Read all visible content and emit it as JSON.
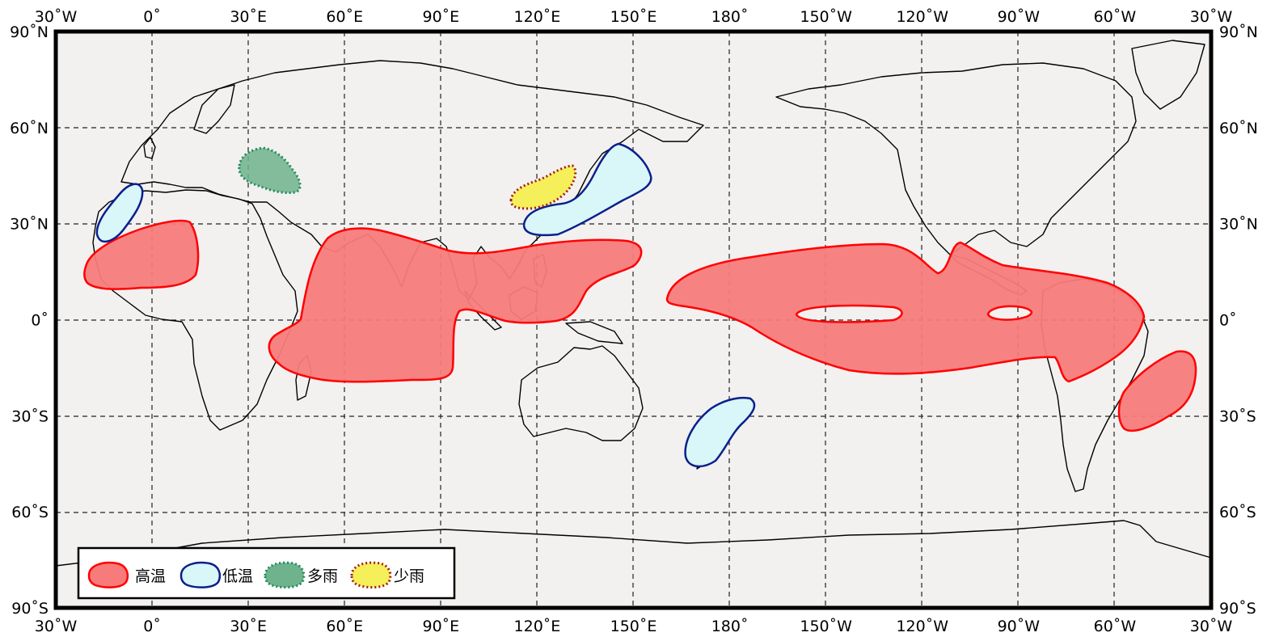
{
  "map": {
    "projection": "equirectangular",
    "lon_range": [
      "30°W",
      "30°W"
    ],
    "lat_range": [
      "90°S",
      "90°N"
    ],
    "gridlines": "dashed",
    "top_lon_labels": [
      "30˚W",
      "0˚",
      "30˚E",
      "60˚E",
      "90˚E",
      "120˚E",
      "150˚E",
      "180˚",
      "150˚W",
      "120˚W",
      "90˚W",
      "60˚W",
      "30˚W"
    ],
    "bottom_lon_labels": [
      "30˚W",
      "0˚",
      "30˚E",
      "60˚E",
      "90˚E",
      "120˚E",
      "150˚E",
      "180˚",
      "150˚W",
      "120˚W",
      "90˚W",
      "60˚W",
      "30˚W"
    ],
    "left_lat_labels": [
      "90˚N",
      "60˚N",
      "30˚N",
      "0˚",
      "30˚S",
      "60˚S",
      "90˚S"
    ],
    "right_lat_labels": [
      "90˚N",
      "60˚N",
      "30˚N",
      "0˚",
      "30˚S",
      "60˚S",
      "90˚S"
    ],
    "colors": {
      "ocean_bg": "#f2f1f0",
      "warm_fill": "#f77b7b",
      "warm_stroke": "#ff0000",
      "cold_fill": "#d9f6f8",
      "cold_stroke": "#0a1f8c",
      "wet_fill": "#6fb38c",
      "wet_stroke": "#1f8a5b",
      "dry_fill": "#f5ef5a",
      "dry_stroke": "#a11a1a"
    },
    "regions": [
      {
        "category": "warm",
        "area": "West Africa"
      },
      {
        "category": "warm",
        "area": "Indian Ocean and South Asia"
      },
      {
        "category": "warm",
        "area": "Central-Eastern Pacific and Northern South America"
      },
      {
        "category": "warm",
        "area": "South Atlantic off Brazil"
      },
      {
        "category": "cold",
        "area": "Iberia / Morocco"
      },
      {
        "category": "cold",
        "area": "Japan"
      },
      {
        "category": "cold",
        "area": "New Zealand"
      },
      {
        "category": "wet",
        "area": "Eastern Europe"
      },
      {
        "category": "dry",
        "area": "Korea / Northeast China"
      }
    ]
  },
  "legend": {
    "items": [
      {
        "label": "高温",
        "symbol": "warm"
      },
      {
        "label": "低温",
        "symbol": "cold"
      },
      {
        "label": "多雨",
        "symbol": "wet"
      },
      {
        "label": "少雨",
        "symbol": "dry"
      }
    ]
  }
}
